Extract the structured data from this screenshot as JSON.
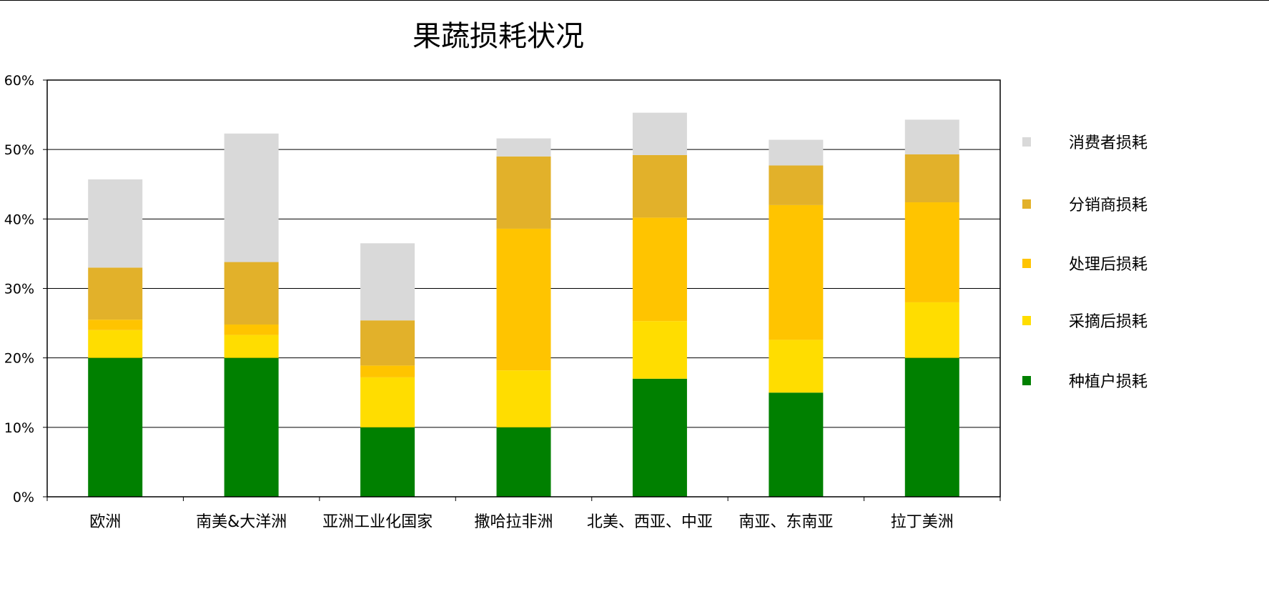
{
  "chart_data": {
    "type": "bar",
    "stacked": true,
    "title": "果蔬损耗状况",
    "xlabel": "",
    "ylabel": "",
    "ylim": [
      0,
      60
    ],
    "y_ticks": [
      "0%",
      "10%",
      "20%",
      "30%",
      "40%",
      "50%",
      "60%"
    ],
    "grid": true,
    "legend_position": "right",
    "categories": [
      "欧洲",
      "南美&大洋洲",
      "亚洲工业化国家",
      "撒哈拉非洲",
      "北美、西亚、中亚",
      "南亚、东南亚",
      "拉丁美洲"
    ],
    "series": [
      {
        "name": "种植户损耗",
        "color": "#008000",
        "values": [
          20,
          20,
          10,
          10,
          17,
          15,
          20
        ]
      },
      {
        "name": "采摘后损耗",
        "color": "#FFDD00",
        "values": [
          4,
          3.3,
          7.2,
          8.2,
          8.3,
          7.6,
          8
        ]
      },
      {
        "name": "处理后损耗",
        "color": "#FFC400",
        "values": [
          1.5,
          1.5,
          1.7,
          20.4,
          14.9,
          19.4,
          14.4
        ]
      },
      {
        "name": "分销商损耗",
        "color": "#E2B12A",
        "values": [
          7.5,
          9,
          6.5,
          10.4,
          9,
          5.7,
          6.9
        ]
      },
      {
        "name": "消费者损耗",
        "color": "#D9D9D9",
        "values": [
          12.7,
          18.5,
          11.1,
          2.6,
          6.1,
          3.7,
          5
        ]
      }
    ]
  }
}
